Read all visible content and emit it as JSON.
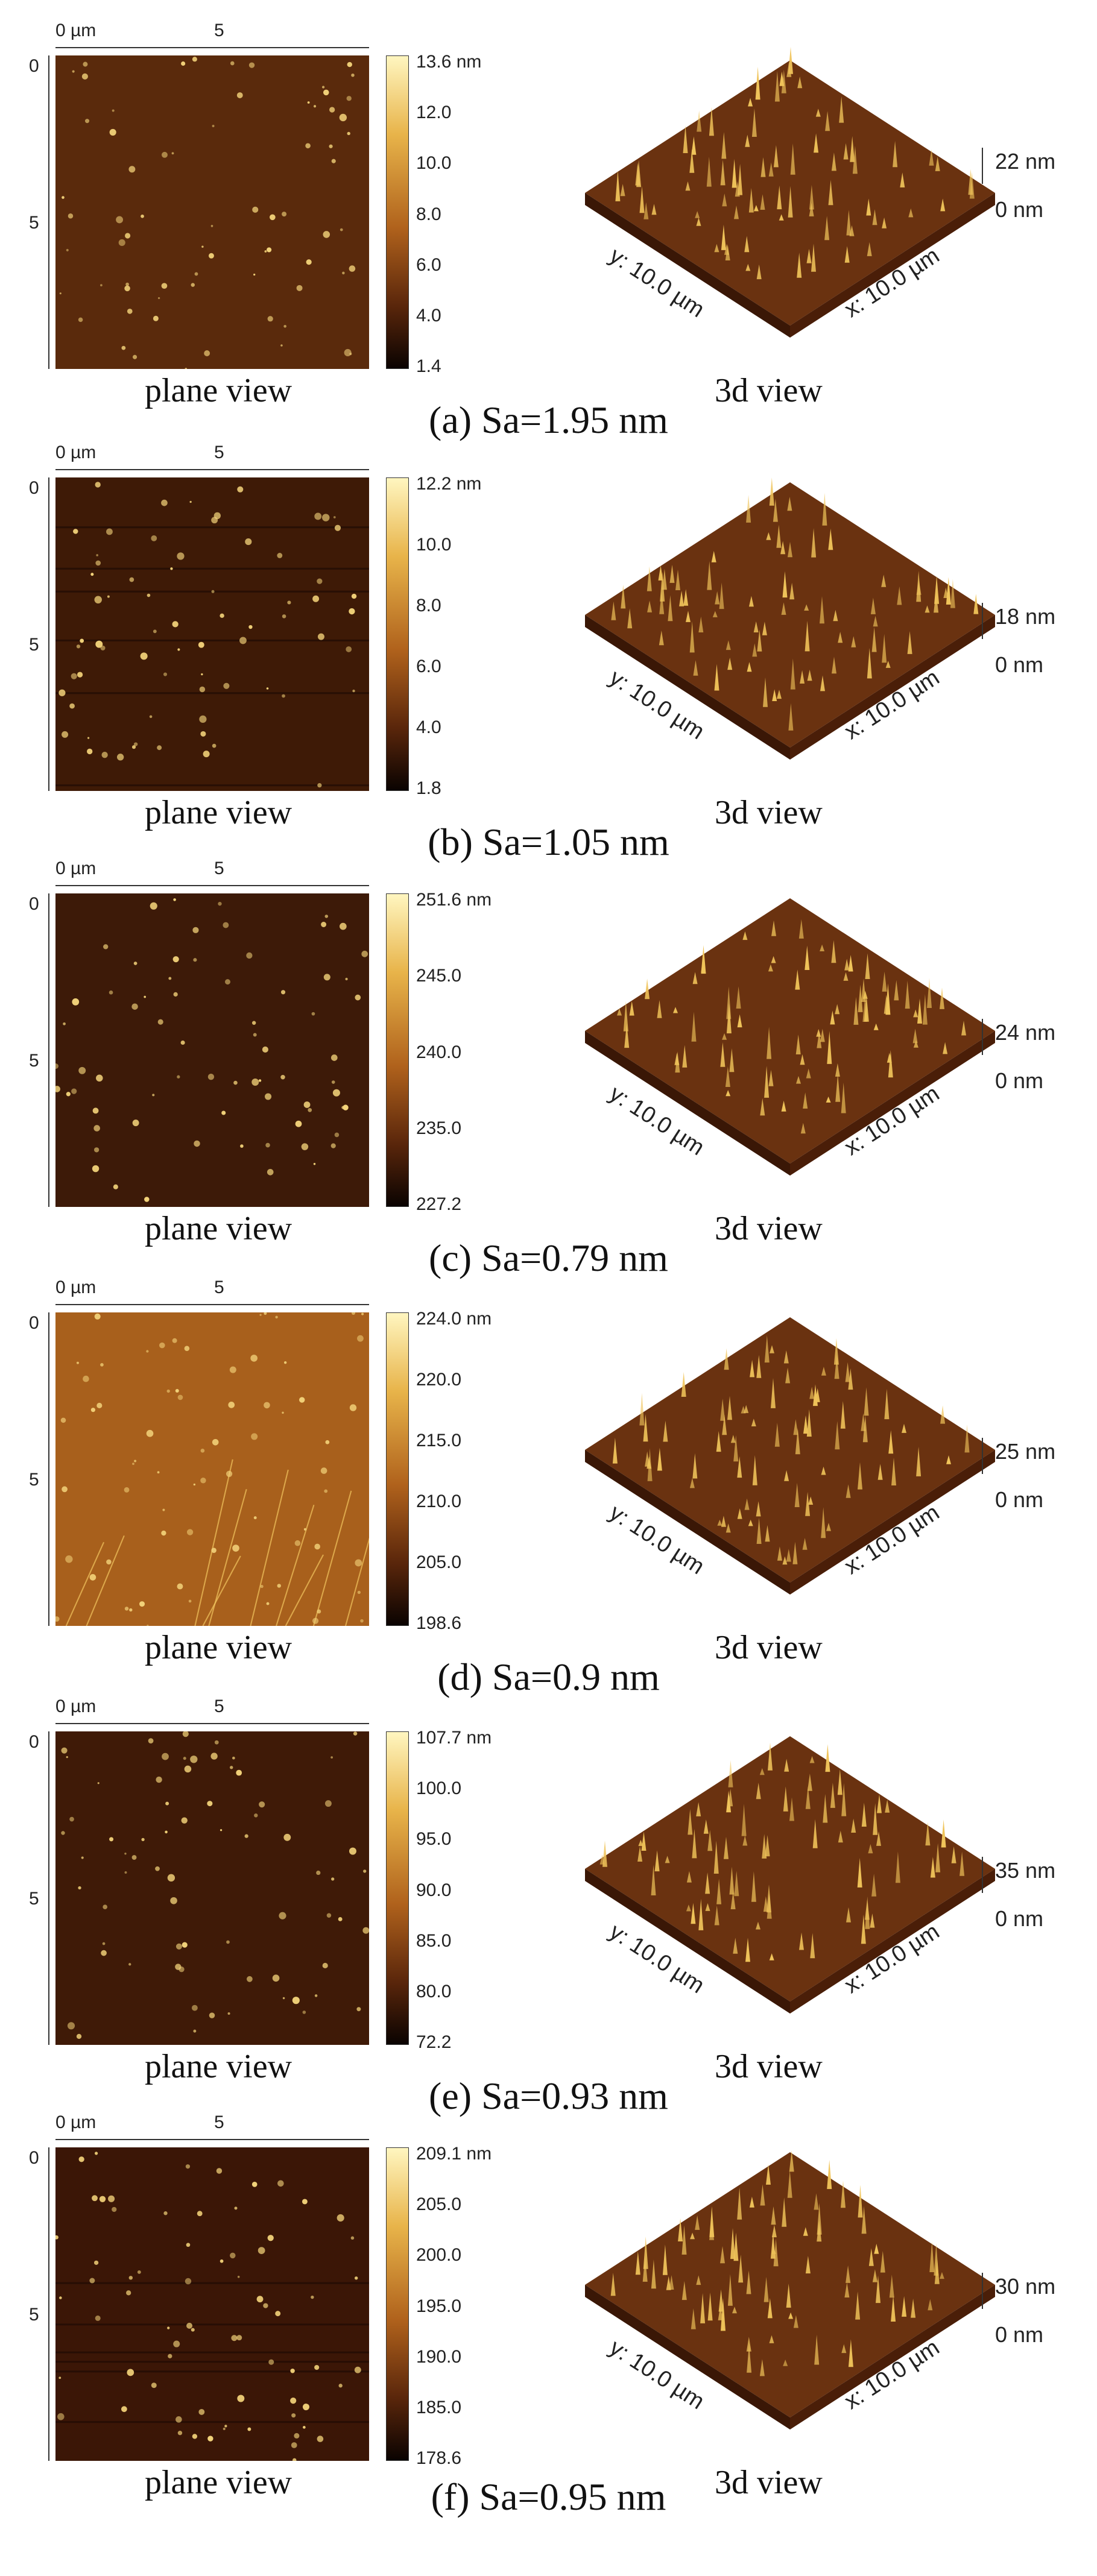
{
  "common": {
    "x_tick_start": "0 µm",
    "x_tick_mid": "5",
    "y_tick_start": "0",
    "y_tick_mid": "5",
    "plane_view_label": "plane view",
    "view3d_label": "3d view",
    "surface_y_label": "y: 10.0 µm",
    "surface_x_label": "x: 10.0 µm",
    "zero_label": "0 nm"
  },
  "panels": [
    {
      "caption": "(a) Sa=1.95 nm",
      "colorbar_ticks": [
        "13.6 nm",
        "12.0",
        "10.0",
        "8.0",
        "6.0",
        "4.0",
        "1.4"
      ],
      "z_height": "22 nm",
      "base_color": "#5a2a0c"
    },
    {
      "caption": "(b) Sa=1.05 nm",
      "colorbar_ticks": [
        "12.2 nm",
        "10.0",
        "8.0",
        "6.0",
        "4.0",
        "1.8"
      ],
      "z_height": "18 nm",
      "base_color": "#3e1a06"
    },
    {
      "caption": "(c) Sa=0.79 nm",
      "colorbar_ticks": [
        "251.6 nm",
        "245.0",
        "240.0",
        "235.0",
        "227.2"
      ],
      "z_height": "24 nm",
      "base_color": "#3d1a08"
    },
    {
      "caption": "(d) Sa=0.9 nm",
      "colorbar_ticks": [
        "224.0 nm",
        "220.0",
        "215.0",
        "210.0",
        "205.0",
        "198.6"
      ],
      "z_height": "25 nm",
      "base_color": "#a8601c"
    },
    {
      "caption": "(e) Sa=0.93 nm",
      "colorbar_ticks": [
        "107.7 nm",
        "100.0",
        "95.0",
        "90.0",
        "85.0",
        "80.0",
        "72.2"
      ],
      "z_height": "35 nm",
      "base_color": "#3f1a07"
    },
    {
      "caption": "(f) Sa=0.95 nm",
      "colorbar_ticks": [
        "209.1 nm",
        "205.0",
        "200.0",
        "195.0",
        "190.0",
        "185.0",
        "178.6"
      ],
      "z_height": "30 nm",
      "base_color": "#3b1606"
    }
  ]
}
